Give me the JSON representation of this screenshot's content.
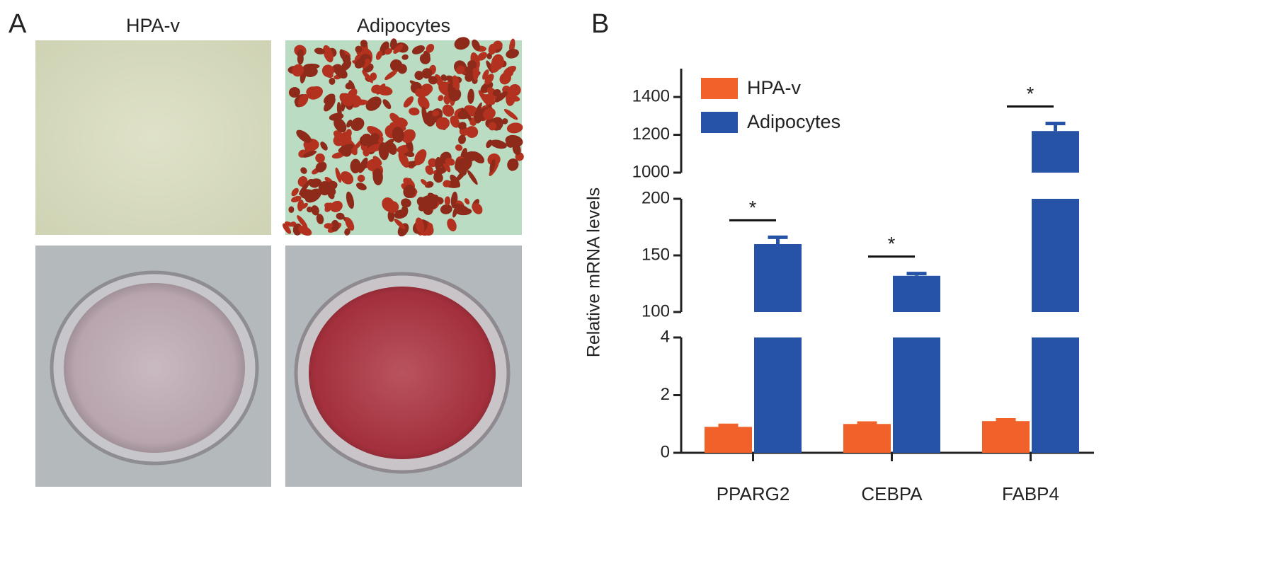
{
  "panel_a": {
    "label": "A",
    "columns": [
      "HPA-v",
      "Adipocytes"
    ]
  },
  "panel_b": {
    "label": "B"
  },
  "chart_data": {
    "type": "bar",
    "ylabel": "Relative mRNA levels",
    "categories": [
      "PPARG2",
      "CEBPA",
      "FABP4"
    ],
    "series": [
      {
        "name": "HPA-v",
        "color": "#f0622a",
        "values": [
          0.9,
          1.0,
          1.1
        ],
        "errors": [
          0.05,
          0.03,
          0.04
        ]
      },
      {
        "name": "Adipocytes",
        "color": "#2653a5",
        "values": [
          160,
          132,
          1220
        ],
        "errors": [
          6,
          2,
          40
        ]
      }
    ],
    "y_segments": [
      {
        "ylim": [
          0,
          4
        ],
        "yticks": [
          0,
          2,
          4
        ]
      },
      {
        "ylim": [
          100,
          200
        ],
        "yticks": [
          100,
          150,
          200
        ]
      },
      {
        "ylim": [
          1000,
          1550
        ],
        "yticks": [
          1000,
          1200,
          1400
        ]
      }
    ],
    "annotations": [
      "*",
      "*",
      "*"
    ],
    "legend": "upper left"
  }
}
